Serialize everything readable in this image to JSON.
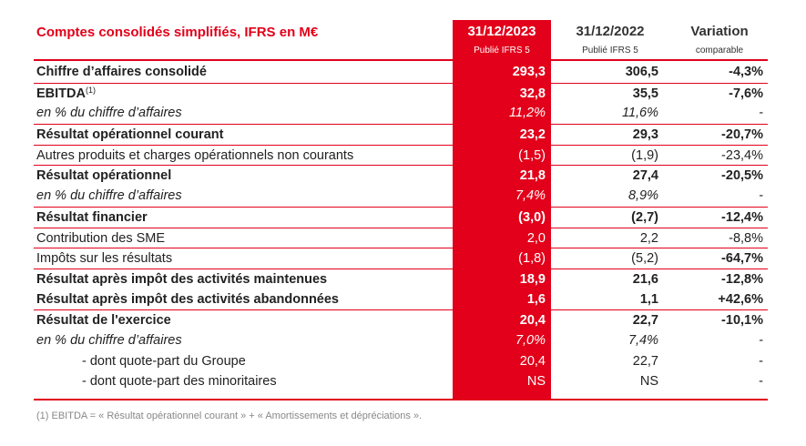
{
  "header": {
    "title": "Comptes consolidés simplifiés, IFRS en M€",
    "col1_year": "31/12/2023",
    "col1_sub": "Publié IFRS 5",
    "col2_year": "31/12/2022",
    "col2_sub": "Publié IFRS 5",
    "col3_title": "Variation",
    "col3_sub": "comparable"
  },
  "rows": [
    {
      "label": "Chiffre d’affaires consolidé",
      "v2023": "293,3",
      "v2022": "306,5",
      "var": "-4,3%"
    },
    {
      "label": "EBITDA",
      "sup": "(1)",
      "v2023": "32,8",
      "v2022": "35,5",
      "var": "-7,6%"
    },
    {
      "label": "en % du chiffre d’affaires",
      "v2023": "11,2%",
      "v2022": "11,6%",
      "var": "-"
    },
    {
      "label": "Résultat opérationnel courant",
      "v2023": "23,2",
      "v2022": "29,3",
      "var": "-20,7%"
    },
    {
      "label": "Autres produits et charges opérationnels non courants",
      "v2023": "(1,5)",
      "v2022": "(1,9)",
      "var": "-23,4%"
    },
    {
      "label": "Résultat opérationnel",
      "v2023": "21,8",
      "v2022": "27,4",
      "var": "-20,5%"
    },
    {
      "label": "en % du chiffre d’affaires",
      "v2023": "7,4%",
      "v2022": "8,9%",
      "var": "-"
    },
    {
      "label": "Résultat financier",
      "v2023": "(3,0)",
      "v2022": "(2,7)",
      "var": "-12,4%"
    },
    {
      "label": "Contribution des SME",
      "v2023": "2,0",
      "v2022": "2,2",
      "var": "-8,8%"
    },
    {
      "label": "Impôts sur les résultats",
      "v2023": "(1,8)",
      "v2022": "(5,2)",
      "var": "-64,7%"
    },
    {
      "label": "Résultat après impôt des activités maintenues",
      "v2023": "18,9",
      "v2022": "21,6",
      "var": "-12,8%"
    },
    {
      "label": "Résultat après impôt des activités abandonnées",
      "v2023": "1,6",
      "v2022": "1,1",
      "var": "+42,6%"
    },
    {
      "label": "Résultat de l'exercice",
      "v2023": "20,4",
      "v2022": "22,7",
      "var": "-10,1%"
    },
    {
      "label": "en % du chiffre d’affaires",
      "v2023": "7,0%",
      "v2022": "7,4%",
      "var": "-"
    },
    {
      "label": "-   dont quote-part du Groupe",
      "v2023": "20,4",
      "v2022": "22,7",
      "var": "-"
    },
    {
      "label": "-   dont quote-part des minoritaires",
      "v2023": "NS",
      "v2022": "NS",
      "var": "-"
    }
  ],
  "footnote": "(1) EBITDA = « Résultat opérationnel courant » + « Amortissements et dépréciations ».",
  "colors": {
    "accent": "#e2001a"
  }
}
